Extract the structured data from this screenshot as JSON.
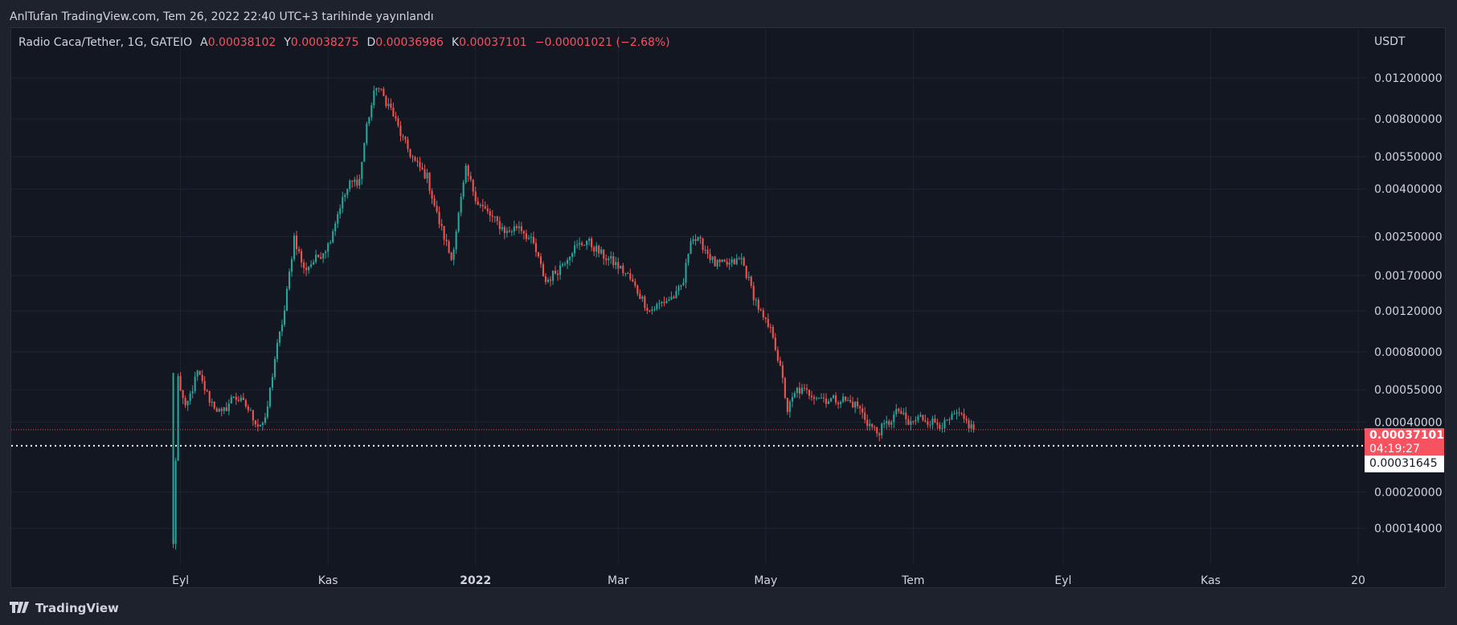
{
  "header": {
    "published_text": "AnlTufan TradingView.com, Tem 26, 2022 22:40 UTC+3 tarihinde yayınlandı"
  },
  "legend": {
    "symbol": "Radio Caca/Tether, 1G, GATEIO",
    "open_label": "A",
    "open_value": "0.00038102",
    "high_label": "Y",
    "high_value": "0.00038275",
    "low_label": "D",
    "low_value": "0.00036986",
    "close_label": "K",
    "close_value": "0.00037101",
    "change": "−0.00001021 (−2.68%)"
  },
  "price_axis": {
    "currency": "USDT",
    "current_price": "0.00037101",
    "countdown": "04:19:27",
    "line_price": "0.00031645"
  },
  "footer": {
    "brand": "TradingView"
  },
  "colors": {
    "up": "#26a69a",
    "down": "#ef5350",
    "background": "#131722",
    "grid": "#1f2430",
    "text": "#d1d4dc"
  },
  "chart_data": {
    "type": "candlestick",
    "y_scale": "log",
    "ylim": [
      0.0001,
      0.0135
    ],
    "y_ticks": [
      "0.01200000",
      "0.00800000",
      "0.00550000",
      "0.00400000",
      "0.00250000",
      "0.00170000",
      "0.00120000",
      "0.00080000",
      "0.00055000",
      "0.00040000",
      "0.00020000",
      "0.00014000"
    ],
    "y_tick_values": [
      0.012,
      0.008,
      0.0055,
      0.004,
      0.0025,
      0.0017,
      0.0012,
      0.0008,
      0.00055,
      0.0004,
      0.0002,
      0.00014
    ],
    "x_ticks": [
      "Eyl",
      "Kas",
      "2022",
      "Mar",
      "May",
      "Tem",
      "Eyl",
      "Kas",
      "20"
    ],
    "x_tick_dates": [
      "2021-09-01",
      "2021-11-01",
      "2022-01-01",
      "2022-03-01",
      "2022-05-01",
      "2022-07-01",
      "2022-09-01",
      "2022-11-01",
      "2023-01-01"
    ],
    "x_range": [
      "2021-06-23",
      "2023-01-01"
    ],
    "horizontal_line": 0.00031645,
    "current_price": 0.00037101,
    "price_path": [
      [
        "2021-08-29",
        0.00012
      ],
      [
        "2021-08-31",
        0.00062
      ],
      [
        "2021-09-03",
        0.00045
      ],
      [
        "2021-09-08",
        0.00065
      ],
      [
        "2021-09-13",
        0.0005
      ],
      [
        "2021-09-18",
        0.00043
      ],
      [
        "2021-09-23",
        0.00052
      ],
      [
        "2021-09-28",
        0.00047
      ],
      [
        "2021-10-03",
        0.00039
      ],
      [
        "2021-10-06",
        0.0004
      ],
      [
        "2021-10-10",
        0.00075
      ],
      [
        "2021-10-14",
        0.0012
      ],
      [
        "2021-10-18",
        0.0025
      ],
      [
        "2021-10-22",
        0.0018
      ],
      [
        "2021-10-27",
        0.002
      ],
      [
        "2021-11-01",
        0.0023
      ],
      [
        "2021-11-06",
        0.0034
      ],
      [
        "2021-11-10",
        0.0042
      ],
      [
        "2021-11-14",
        0.0044
      ],
      [
        "2021-11-17",
        0.0075
      ],
      [
        "2021-11-21",
        0.0112
      ],
      [
        "2021-11-27",
        0.0088
      ],
      [
        "2021-12-02",
        0.0065
      ],
      [
        "2021-12-07",
        0.0052
      ],
      [
        "2021-12-12",
        0.0045
      ],
      [
        "2021-12-16",
        0.0031
      ],
      [
        "2021-12-22",
        0.002
      ],
      [
        "2021-12-28",
        0.0048
      ],
      [
        "2022-01-02",
        0.0035
      ],
      [
        "2022-01-08",
        0.003
      ],
      [
        "2022-01-14",
        0.0026
      ],
      [
        "2022-01-19",
        0.0028
      ],
      [
        "2022-01-25",
        0.0023
      ],
      [
        "2022-01-30",
        0.0016
      ],
      [
        "2022-02-04",
        0.0018
      ],
      [
        "2022-02-10",
        0.0022
      ],
      [
        "2022-02-16",
        0.0024
      ],
      [
        "2022-02-22",
        0.0021
      ],
      [
        "2022-02-28",
        0.0019
      ],
      [
        "2022-03-05",
        0.0017
      ],
      [
        "2022-03-10",
        0.0014
      ],
      [
        "2022-03-14",
        0.0012
      ],
      [
        "2022-03-19",
        0.0013
      ],
      [
        "2022-03-25",
        0.0014
      ],
      [
        "2022-03-28",
        0.0016
      ],
      [
        "2022-03-31",
        0.0025
      ],
      [
        "2022-04-05",
        0.0023
      ],
      [
        "2022-04-10",
        0.0019
      ],
      [
        "2022-04-16",
        0.0019
      ],
      [
        "2022-04-21",
        0.002
      ],
      [
        "2022-04-26",
        0.0014
      ],
      [
        "2022-04-30",
        0.0011
      ],
      [
        "2022-05-04",
        0.00095
      ],
      [
        "2022-05-08",
        0.0006
      ],
      [
        "2022-05-10",
        0.00045
      ],
      [
        "2022-05-14",
        0.00055
      ],
      [
        "2022-05-20",
        0.00053
      ],
      [
        "2022-05-26",
        0.0005
      ],
      [
        "2022-06-02",
        0.0005
      ],
      [
        "2022-06-08",
        0.00047
      ],
      [
        "2022-06-12",
        0.0004
      ],
      [
        "2022-06-16",
        0.00036
      ],
      [
        "2022-06-21",
        0.0004
      ],
      [
        "2022-06-25",
        0.00045
      ],
      [
        "2022-06-29",
        0.00039
      ],
      [
        "2022-07-04",
        0.00042
      ],
      [
        "2022-07-09",
        0.0004
      ],
      [
        "2022-07-14",
        0.00039
      ],
      [
        "2022-07-19",
        0.00043
      ],
      [
        "2022-07-23",
        0.0004
      ],
      [
        "2022-07-26",
        0.00037
      ]
    ]
  }
}
